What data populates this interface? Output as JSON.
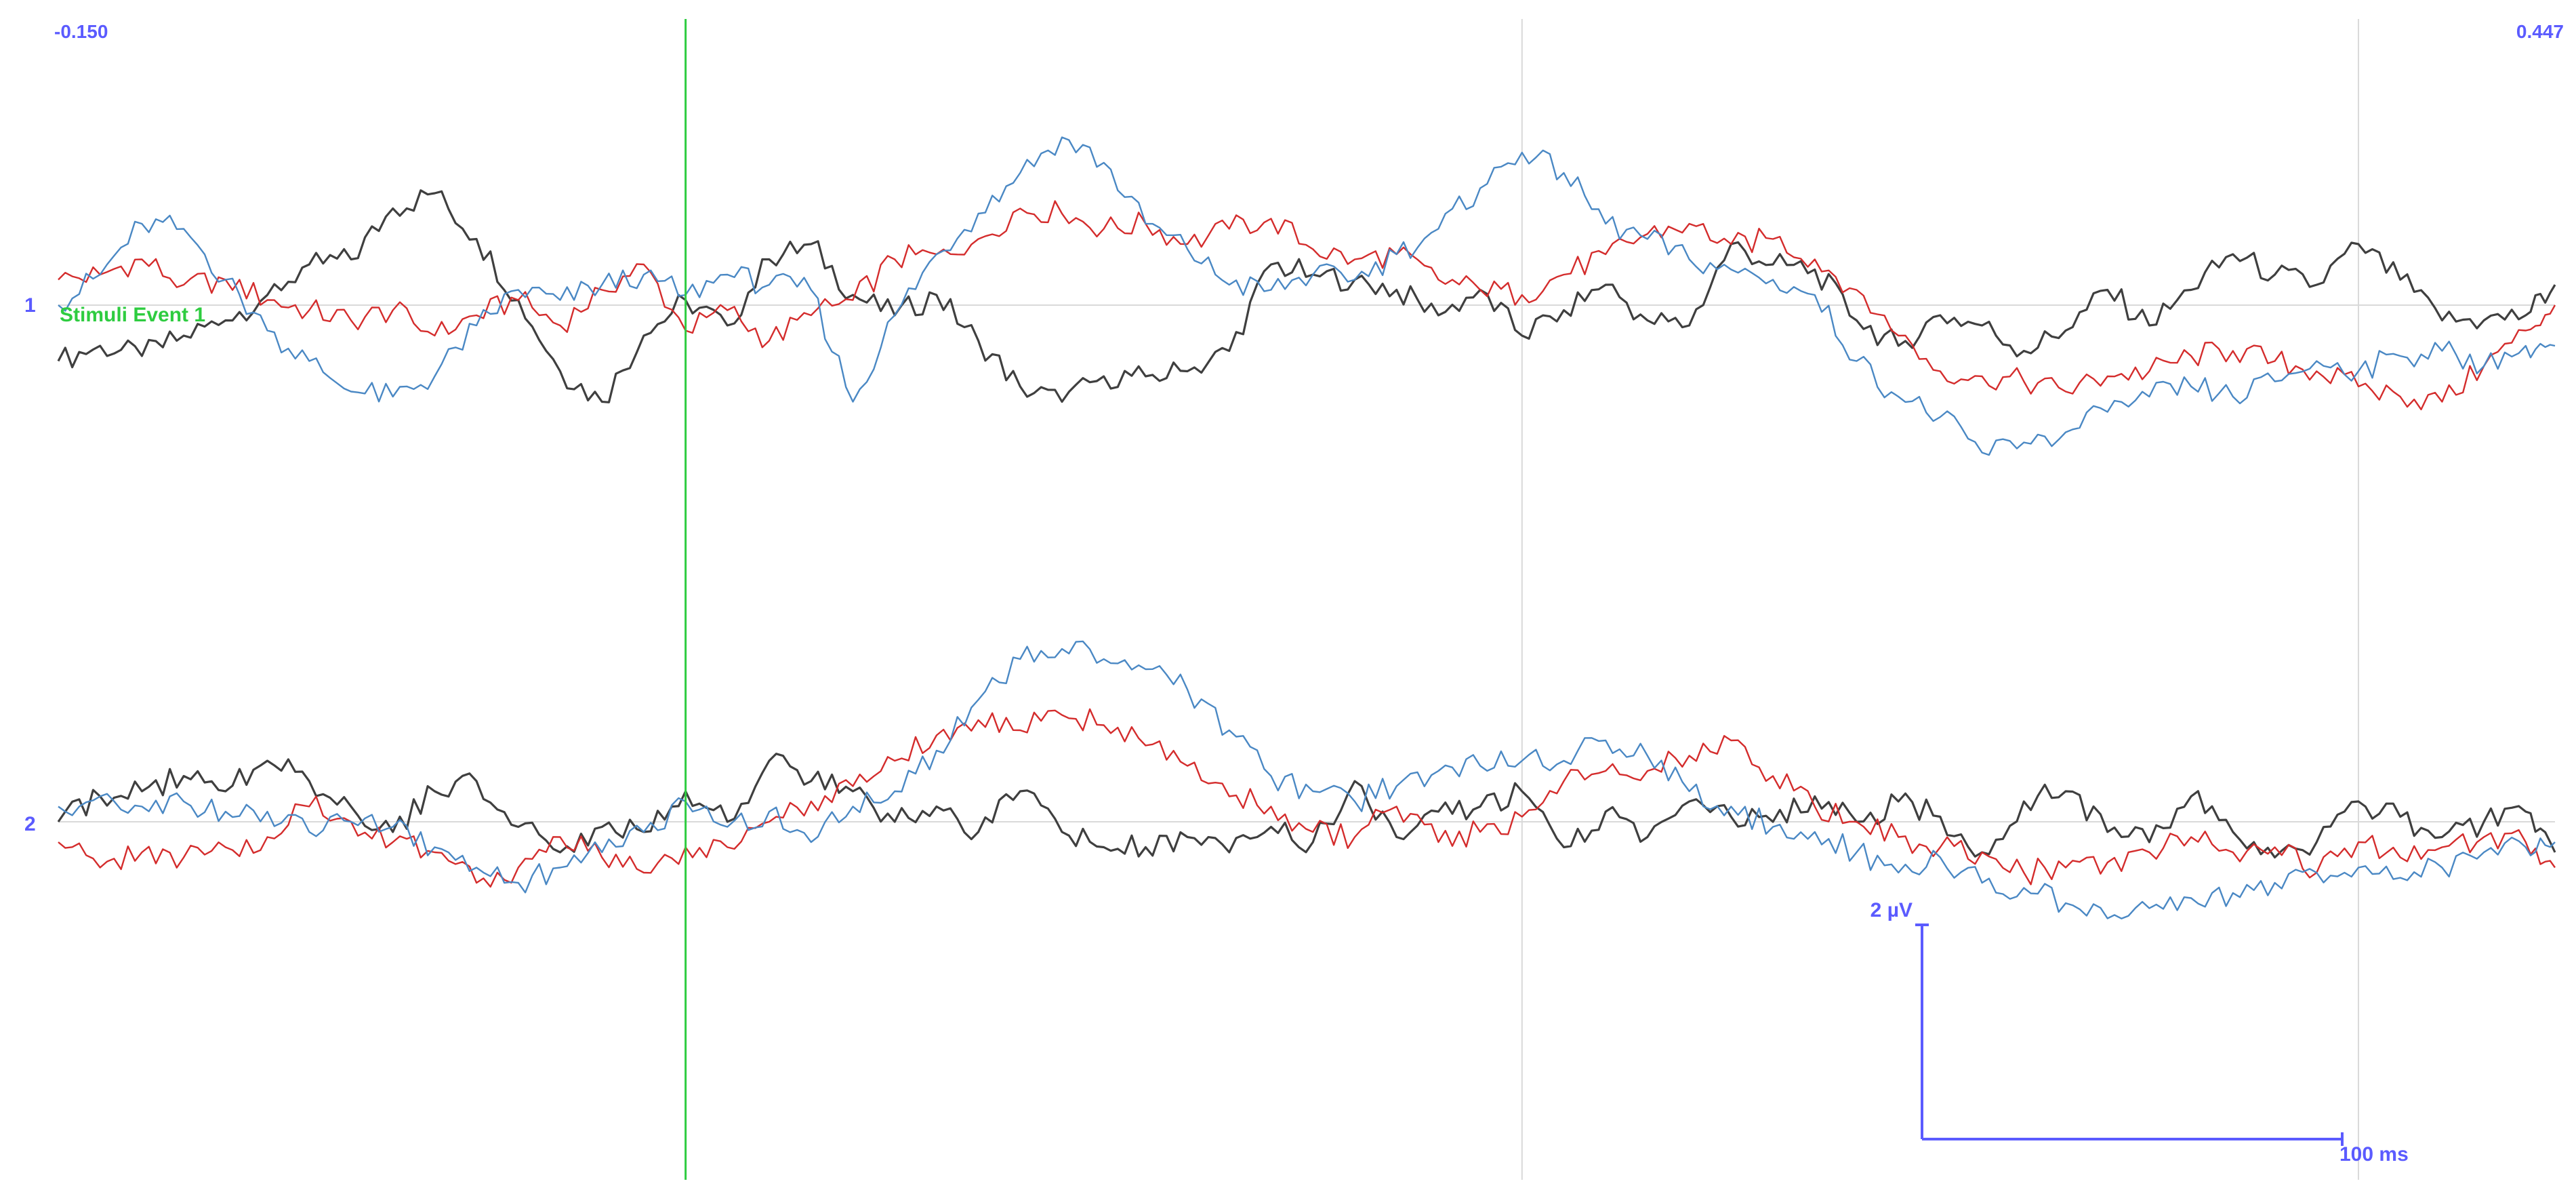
{
  "viewer": {
    "time_start_label": "-0.150",
    "time_end_label": "0.447",
    "event_label": "Stimuli Event 1",
    "scale_amplitude_label": "2 µV",
    "scale_time_label": "100 ms",
    "accent_color": "#5b5bff",
    "event_color": "#2ecc40",
    "grid_color": "#d9d9d9"
  },
  "chart_data": {
    "type": "line",
    "title": "",
    "x_unit": "s",
    "y_unit": "µV",
    "xlim": [
      -0.15,
      0.447
    ],
    "event_time": 0.0,
    "vertical_gridlines": [
      0.2,
      0.4
    ],
    "channels": [
      {
        "label": "1",
        "series": [
          {
            "color": "#3f3f3f",
            "x": [
              -0.15,
              -0.14,
              -0.13,
              -0.12,
              -0.11,
              -0.1,
              -0.09,
              -0.08,
              -0.07,
              -0.06,
              -0.05,
              -0.04,
              -0.03,
              -0.02,
              -0.01,
              0.0,
              0.01,
              0.02,
              0.03,
              0.04,
              0.05,
              0.06,
              0.07,
              0.08,
              0.09,
              0.1,
              0.11,
              0.12,
              0.13,
              0.14,
              0.15,
              0.16,
              0.17,
              0.18,
              0.19,
              0.2,
              0.21,
              0.22,
              0.23,
              0.24,
              0.25,
              0.26,
              0.27,
              0.28,
              0.29,
              0.3,
              0.31,
              0.32,
              0.33,
              0.34,
              0.35,
              0.36,
              0.37,
              0.38,
              0.39,
              0.4,
              0.41,
              0.42,
              0.43,
              0.44,
              0.447
            ],
            "values": [
              -1.1,
              -0.8,
              -1.0,
              -0.6,
              -0.3,
              0.2,
              0.8,
              0.9,
              1.9,
              2.2,
              1.3,
              0.1,
              -1.3,
              -1.9,
              -0.6,
              0.1,
              -0.4,
              0.9,
              1.2,
              0.2,
              -0.2,
              0.2,
              -0.7,
              -1.6,
              -1.9,
              -1.4,
              -1.4,
              -1.3,
              -0.9,
              0.8,
              0.6,
              0.5,
              0.3,
              -0.2,
              0.3,
              -0.6,
              -0.1,
              0.4,
              -0.3,
              -0.4,
              1.2,
              0.8,
              0.7,
              -0.3,
              -0.8,
              -0.2,
              -0.4,
              -0.9,
              -0.5,
              0.3,
              -0.4,
              0.3,
              1.0,
              0.6,
              0.4,
              1.2,
              0.5,
              -0.3,
              -0.3,
              -0.2,
              0.4
            ]
          },
          {
            "color": "#d42c2c",
            "x": [
              -0.15,
              -0.14,
              -0.13,
              -0.12,
              -0.11,
              -0.1,
              -0.09,
              -0.08,
              -0.07,
              -0.06,
              -0.05,
              -0.04,
              -0.03,
              -0.02,
              -0.01,
              0.0,
              0.01,
              0.02,
              0.03,
              0.04,
              0.05,
              0.06,
              0.07,
              0.08,
              0.09,
              0.1,
              0.11,
              0.12,
              0.13,
              0.14,
              0.15,
              0.16,
              0.17,
              0.18,
              0.19,
              0.2,
              0.21,
              0.22,
              0.23,
              0.24,
              0.25,
              0.26,
              0.27,
              0.28,
              0.29,
              0.3,
              0.31,
              0.32,
              0.33,
              0.34,
              0.35,
              0.36,
              0.37,
              0.38,
              0.39,
              0.4,
              0.41,
              0.42,
              0.43,
              0.44,
              0.447
            ],
            "values": [
              0.5,
              0.6,
              0.9,
              0.4,
              0.5,
              0.1,
              -0.1,
              -0.3,
              -0.1,
              -0.6,
              -0.2,
              0.1,
              -0.4,
              0.3,
              0.8,
              -0.5,
              -0.1,
              -0.7,
              -0.2,
              0.1,
              0.9,
              1.0,
              1.3,
              1.9,
              1.8,
              1.5,
              1.6,
              1.2,
              1.5,
              1.7,
              1.1,
              0.9,
              1.0,
              0.5,
              0.3,
              0.2,
              0.6,
              1.0,
              1.4,
              1.6,
              1.2,
              1.3,
              0.9,
              0.3,
              -0.6,
              -1.3,
              -1.4,
              -1.5,
              -1.7,
              -1.4,
              -1.3,
              -1.0,
              -0.9,
              -1.1,
              -1.3,
              -1.6,
              -1.8,
              -1.9,
              -1.2,
              -0.5,
              0.0
            ]
          },
          {
            "color": "#4a88c4",
            "x": [
              -0.15,
              -0.14,
              -0.13,
              -0.12,
              -0.11,
              -0.1,
              -0.09,
              -0.08,
              -0.07,
              -0.06,
              -0.05,
              -0.04,
              -0.03,
              -0.02,
              -0.01,
              0.0,
              0.01,
              0.02,
              0.03,
              0.04,
              0.05,
              0.06,
              0.07,
              0.08,
              0.09,
              0.1,
              0.11,
              0.12,
              0.13,
              0.14,
              0.15,
              0.16,
              0.17,
              0.18,
              0.19,
              0.2,
              0.21,
              0.22,
              0.23,
              0.24,
              0.25,
              0.26,
              0.27,
              0.28,
              0.29,
              0.3,
              0.31,
              0.32,
              0.33,
              0.34,
              0.35,
              0.36,
              0.37,
              0.38,
              0.39,
              0.4,
              0.41,
              0.42,
              0.43,
              0.44,
              0.447
            ],
            "values": [
              0.0,
              0.6,
              1.6,
              1.5,
              0.5,
              -0.5,
              -1.1,
              -1.7,
              -1.8,
              -1.4,
              -0.4,
              0.3,
              0.1,
              0.4,
              0.6,
              0.2,
              0.6,
              0.4,
              0.3,
              -1.9,
              -0.2,
              1.0,
              1.8,
              2.6,
              3.3,
              2.8,
              1.6,
              1.1,
              0.4,
              0.3,
              0.6,
              0.5,
              1.0,
              1.5,
              2.3,
              3.0,
              2.6,
              1.6,
              1.3,
              0.9,
              0.7,
              0.5,
              0.2,
              -1.1,
              -1.8,
              -2.2,
              -2.9,
              -2.7,
              -2.5,
              -2.1,
              -1.8,
              -1.6,
              -1.8,
              -1.5,
              -1.1,
              -1.3,
              -1.0,
              -0.9,
              -1.2,
              -0.8,
              -0.8
            ]
          }
        ]
      },
      {
        "label": "2",
        "series": [
          {
            "color": "#3f3f3f",
            "x": [
              -0.15,
              -0.14,
              -0.13,
              -0.12,
              -0.11,
              -0.1,
              -0.09,
              -0.08,
              -0.07,
              -0.06,
              -0.05,
              -0.04,
              -0.03,
              -0.02,
              -0.01,
              0.0,
              0.01,
              0.02,
              0.03,
              0.04,
              0.05,
              0.06,
              0.07,
              0.08,
              0.09,
              0.1,
              0.11,
              0.12,
              0.13,
              0.14,
              0.15,
              0.16,
              0.17,
              0.18,
              0.19,
              0.2,
              0.21,
              0.22,
              0.23,
              0.24,
              0.25,
              0.26,
              0.27,
              0.28,
              0.29,
              0.3,
              0.31,
              0.32,
              0.33,
              0.34,
              0.35,
              0.36,
              0.37,
              0.38,
              0.39,
              0.4,
              0.41,
              0.42,
              0.43,
              0.44,
              0.447
            ],
            "values": [
              0.0,
              0.5,
              0.6,
              0.9,
              0.6,
              1.2,
              0.8,
              0.3,
              -0.2,
              0.6,
              0.8,
              -0.1,
              -0.6,
              -0.1,
              -0.2,
              0.6,
              0.0,
              1.2,
              0.8,
              0.6,
              0.0,
              0.3,
              -0.2,
              0.6,
              -0.2,
              -0.5,
              -0.5,
              -0.3,
              -0.6,
              -0.1,
              -0.4,
              0.8,
              -0.3,
              0.2,
              0.3,
              0.6,
              -0.5,
              0.2,
              -0.3,
              0.4,
              0.1,
              0.0,
              0.5,
              0.0,
              0.4,
              0.1,
              -0.6,
              0.4,
              0.6,
              -0.2,
              -0.4,
              0.5,
              -0.2,
              -0.7,
              -0.4,
              0.4,
              0.1,
              -0.3,
              0.0,
              0.2,
              -0.6
            ]
          },
          {
            "color": "#d42c2c",
            "x": [
              -0.15,
              -0.14,
              -0.13,
              -0.12,
              -0.11,
              -0.1,
              -0.09,
              -0.08,
              -0.07,
              -0.06,
              -0.05,
              -0.04,
              -0.03,
              -0.02,
              -0.01,
              0.0,
              0.01,
              0.02,
              0.03,
              0.04,
              0.05,
              0.06,
              0.07,
              0.08,
              0.09,
              0.1,
              0.11,
              0.12,
              0.13,
              0.14,
              0.15,
              0.16,
              0.17,
              0.18,
              0.19,
              0.2,
              0.21,
              0.22,
              0.23,
              0.24,
              0.25,
              0.26,
              0.27,
              0.28,
              0.29,
              0.3,
              0.31,
              0.32,
              0.33,
              0.34,
              0.35,
              0.36,
              0.37,
              0.38,
              0.39,
              0.4,
              0.41,
              0.42,
              0.43,
              0.44,
              0.447
            ],
            "values": [
              -0.4,
              -0.9,
              -0.6,
              -0.7,
              -0.5,
              -0.3,
              0.3,
              0.0,
              -0.4,
              -0.6,
              -1.2,
              -0.9,
              -0.3,
              -0.7,
              -1.0,
              -0.5,
              -0.5,
              0.0,
              0.4,
              0.7,
              1.2,
              1.7,
              2.0,
              1.8,
              2.1,
              1.9,
              1.5,
              1.1,
              0.5,
              0.3,
              -0.2,
              -0.3,
              0.3,
              -0.4,
              -0.2,
              0.1,
              0.8,
              1.0,
              1.0,
              1.3,
              1.6,
              0.9,
              0.3,
              0.0,
              -0.3,
              -0.5,
              -0.6,
              -1.0,
              -0.9,
              -0.8,
              -0.6,
              -0.3,
              -0.6,
              -0.5,
              -1.0,
              -0.4,
              -0.7,
              -0.5,
              -0.3,
              -0.4,
              -0.9
            ]
          },
          {
            "color": "#4a88c4",
            "x": [
              -0.15,
              -0.14,
              -0.13,
              -0.12,
              -0.11,
              -0.1,
              -0.09,
              -0.08,
              -0.07,
              -0.06,
              -0.05,
              -0.04,
              -0.03,
              -0.02,
              -0.01,
              0.0,
              0.01,
              0.02,
              0.03,
              0.04,
              0.05,
              0.06,
              0.07,
              0.08,
              0.09,
              0.1,
              0.11,
              0.12,
              0.13,
              0.14,
              0.15,
              0.16,
              0.17,
              0.18,
              0.19,
              0.2,
              0.21,
              0.22,
              0.23,
              0.24,
              0.25,
              0.26,
              0.27,
              0.28,
              0.29,
              0.3,
              0.31,
              0.32,
              0.33,
              0.34,
              0.35,
              0.36,
              0.37,
              0.38,
              0.39,
              0.4,
              0.41,
              0.42,
              0.43,
              0.44,
              0.447
            ],
            "values": [
              0.3,
              0.5,
              0.3,
              0.4,
              0.2,
              0.2,
              -0.2,
              0.0,
              -0.1,
              -0.5,
              -0.9,
              -1.2,
              -0.9,
              -0.6,
              -0.2,
              0.4,
              -0.1,
              0.2,
              -0.4,
              0.3,
              0.6,
              1.4,
              2.4,
              3.2,
              3.4,
              3.2,
              3.0,
              2.6,
              1.8,
              0.9,
              0.6,
              0.4,
              0.7,
              1.0,
              1.1,
              1.2,
              1.2,
              1.6,
              1.3,
              0.6,
              0.3,
              -0.1,
              -0.2,
              -0.6,
              -1.0,
              -0.7,
              -1.2,
              -1.3,
              -1.6,
              -1.9,
              -1.7,
              -1.5,
              -1.4,
              -1.2,
              -1.0,
              -0.9,
              -1.1,
              -0.9,
              -0.6,
              -0.5,
              -0.4
            ]
          }
        ]
      }
    ]
  }
}
